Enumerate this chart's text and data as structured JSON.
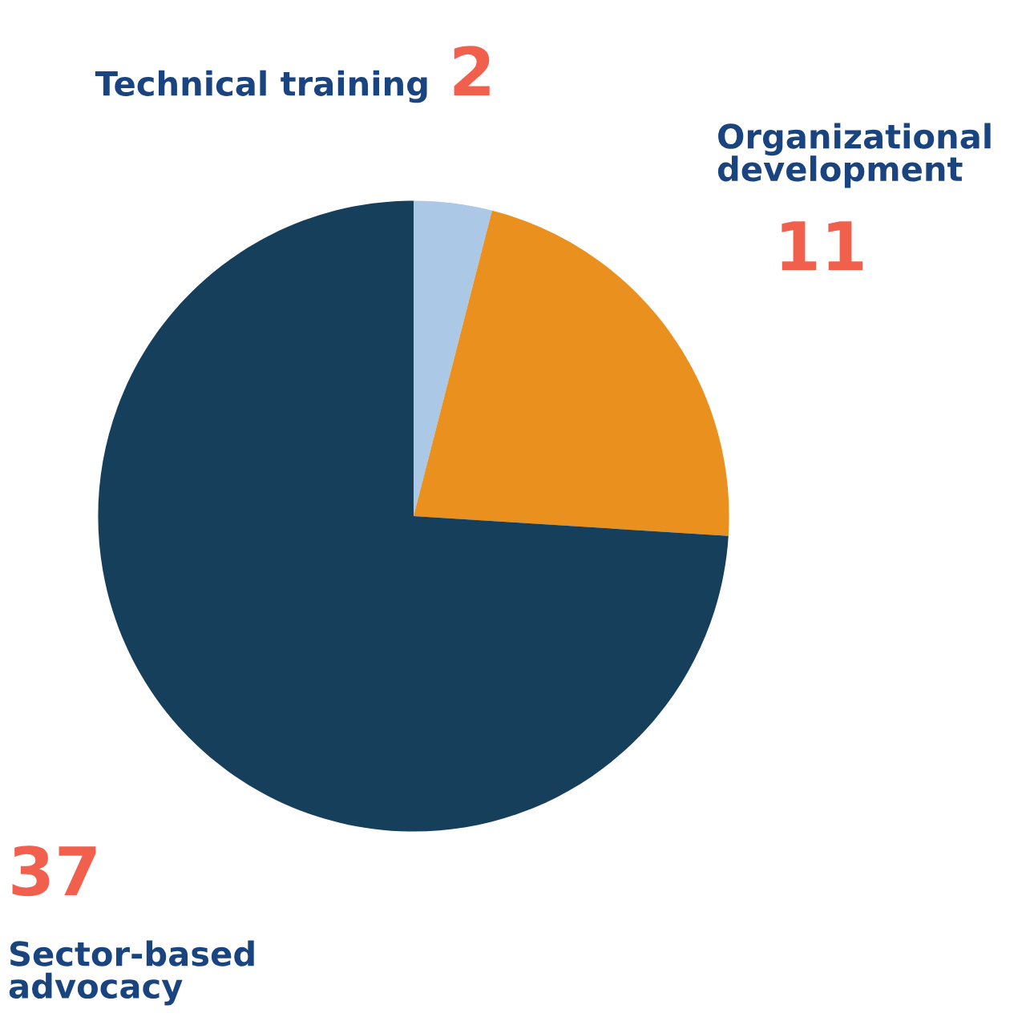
{
  "chart_data": {
    "type": "pie",
    "categories": [
      "Technical training",
      "Organizational\ndevelopment",
      "Sector-based\nadvocacy"
    ],
    "values": [
      2,
      11,
      37
    ],
    "colors": [
      "#abc8e6",
      "#e9901e",
      "#163f5c"
    ],
    "data_labels": true
  }
}
